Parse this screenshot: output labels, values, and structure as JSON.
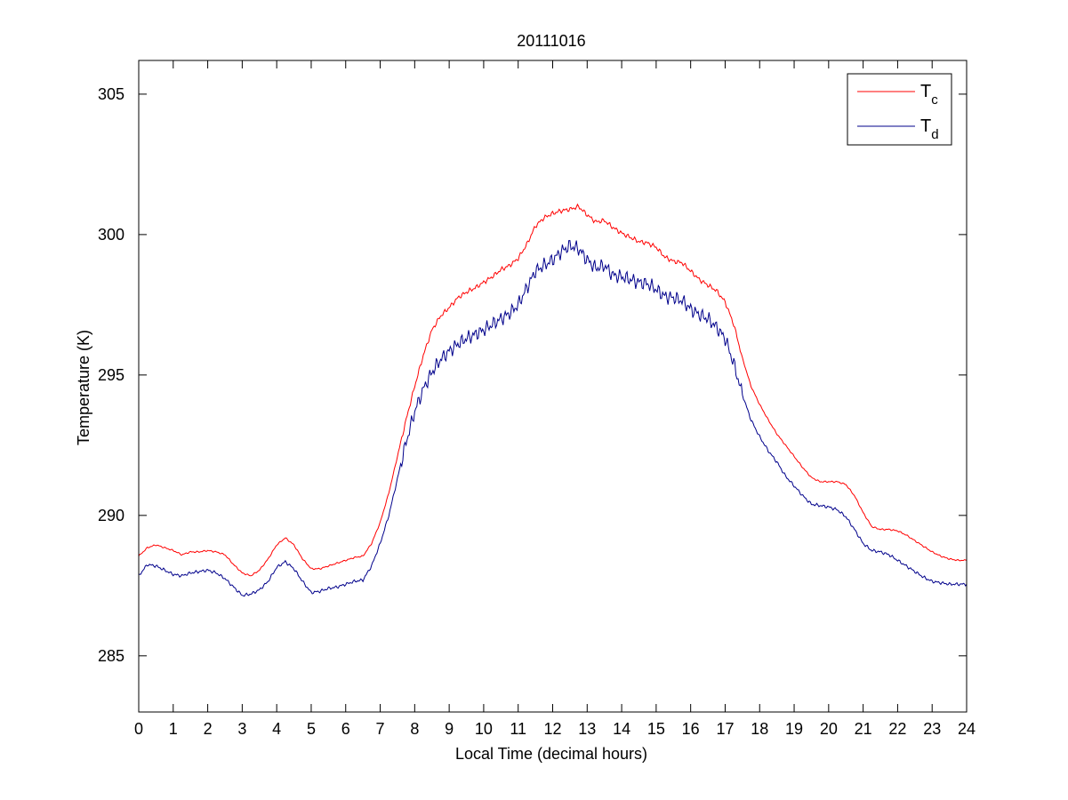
{
  "chart_data": {
    "type": "line",
    "title": "20111016",
    "xlabel": "Local Time (decimal hours)",
    "ylabel": "Temperature (K)",
    "xlim": [
      0,
      24
    ],
    "ylim": [
      283,
      306.2
    ],
    "xticks": [
      0,
      1,
      2,
      3,
      4,
      5,
      6,
      7,
      8,
      9,
      10,
      11,
      12,
      13,
      14,
      15,
      16,
      17,
      18,
      19,
      20,
      21,
      22,
      23,
      24
    ],
    "yticks": [
      285,
      290,
      295,
      300,
      305
    ],
    "grid": false,
    "legend_position": "top-right",
    "series": [
      {
        "name": "T",
        "subscript": "c",
        "color": "#ff0000",
        "points": [
          [
            0,
            288.55
          ],
          [
            0.25,
            288.85
          ],
          [
            0.5,
            288.95
          ],
          [
            0.75,
            288.85
          ],
          [
            1,
            288.75
          ],
          [
            1.25,
            288.6
          ],
          [
            1.5,
            288.7
          ],
          [
            1.75,
            288.7
          ],
          [
            2,
            288.75
          ],
          [
            2.25,
            288.7
          ],
          [
            2.5,
            288.6
          ],
          [
            2.75,
            288.25
          ],
          [
            3,
            287.95
          ],
          [
            3.25,
            287.85
          ],
          [
            3.5,
            288.05
          ],
          [
            3.75,
            288.45
          ],
          [
            4,
            288.95
          ],
          [
            4.25,
            289.2
          ],
          [
            4.5,
            288.95
          ],
          [
            4.75,
            288.45
          ],
          [
            5,
            288.1
          ],
          [
            5.25,
            288.1
          ],
          [
            5.5,
            288.2
          ],
          [
            5.75,
            288.3
          ],
          [
            6,
            288.4
          ],
          [
            6.25,
            288.5
          ],
          [
            6.5,
            288.55
          ],
          [
            6.75,
            289.0
          ],
          [
            7,
            289.75
          ],
          [
            7.25,
            290.8
          ],
          [
            7.5,
            292.1
          ],
          [
            7.75,
            293.4
          ],
          [
            8,
            294.6
          ],
          [
            8.25,
            295.7
          ],
          [
            8.5,
            296.6
          ],
          [
            8.75,
            297.1
          ],
          [
            9,
            297.4
          ],
          [
            9.25,
            297.75
          ],
          [
            9.5,
            297.95
          ],
          [
            9.75,
            298.1
          ],
          [
            10,
            298.3
          ],
          [
            10.25,
            298.5
          ],
          [
            10.5,
            298.75
          ],
          [
            10.75,
            298.9
          ],
          [
            11,
            299.15
          ],
          [
            11.25,
            299.65
          ],
          [
            11.5,
            300.3
          ],
          [
            11.75,
            300.6
          ],
          [
            12,
            300.75
          ],
          [
            12.25,
            300.85
          ],
          [
            12.5,
            300.9
          ],
          [
            12.75,
            301.0
          ],
          [
            13,
            300.7
          ],
          [
            13.25,
            300.45
          ],
          [
            13.5,
            300.5
          ],
          [
            13.75,
            300.25
          ],
          [
            14,
            300.05
          ],
          [
            14.25,
            299.9
          ],
          [
            14.5,
            299.75
          ],
          [
            14.75,
            299.7
          ],
          [
            15,
            299.55
          ],
          [
            15.25,
            299.2
          ],
          [
            15.5,
            299.05
          ],
          [
            15.75,
            299.0
          ],
          [
            16,
            298.7
          ],
          [
            16.25,
            298.4
          ],
          [
            16.5,
            298.2
          ],
          [
            16.75,
            298.0
          ],
          [
            17,
            297.6
          ],
          [
            17.25,
            296.8
          ],
          [
            17.5,
            295.6
          ],
          [
            17.75,
            294.6
          ],
          [
            18,
            293.95
          ],
          [
            18.25,
            293.4
          ],
          [
            18.5,
            292.9
          ],
          [
            18.75,
            292.5
          ],
          [
            19,
            292.1
          ],
          [
            19.25,
            291.7
          ],
          [
            19.5,
            291.35
          ],
          [
            19.75,
            291.2
          ],
          [
            20,
            291.2
          ],
          [
            20.25,
            291.2
          ],
          [
            20.5,
            291.1
          ],
          [
            20.75,
            290.7
          ],
          [
            21,
            290.1
          ],
          [
            21.25,
            289.6
          ],
          [
            21.5,
            289.5
          ],
          [
            21.75,
            289.5
          ],
          [
            22,
            289.45
          ],
          [
            22.25,
            289.3
          ],
          [
            22.5,
            289.1
          ],
          [
            22.75,
            288.9
          ],
          [
            23,
            288.7
          ],
          [
            23.25,
            288.55
          ],
          [
            23.5,
            288.45
          ],
          [
            23.75,
            288.4
          ],
          [
            24,
            288.4
          ]
        ]
      },
      {
        "name": "T",
        "subscript": "d",
        "color": "#00008b",
        "points": [
          [
            0,
            287.85
          ],
          [
            0.25,
            288.25
          ],
          [
            0.5,
            288.2
          ],
          [
            0.75,
            288.05
          ],
          [
            1,
            287.9
          ],
          [
            1.25,
            287.85
          ],
          [
            1.5,
            287.95
          ],
          [
            1.75,
            288.0
          ],
          [
            2,
            288.05
          ],
          [
            2.25,
            287.95
          ],
          [
            2.5,
            287.75
          ],
          [
            2.75,
            287.45
          ],
          [
            3,
            287.15
          ],
          [
            3.25,
            287.2
          ],
          [
            3.5,
            287.35
          ],
          [
            3.75,
            287.65
          ],
          [
            4,
            288.15
          ],
          [
            4.25,
            288.35
          ],
          [
            4.5,
            288.1
          ],
          [
            4.75,
            287.65
          ],
          [
            5,
            287.25
          ],
          [
            5.25,
            287.3
          ],
          [
            5.5,
            287.4
          ],
          [
            5.75,
            287.45
          ],
          [
            6,
            287.55
          ],
          [
            6.25,
            287.65
          ],
          [
            6.5,
            287.7
          ],
          [
            6.75,
            288.2
          ],
          [
            7,
            289.0
          ],
          [
            7.25,
            290.0
          ],
          [
            7.5,
            291.3
          ],
          [
            7.75,
            292.6
          ],
          [
            8,
            293.7
          ],
          [
            8.25,
            294.5
          ],
          [
            8.5,
            295.1
          ],
          [
            8.75,
            295.55
          ],
          [
            9,
            295.85
          ],
          [
            9.25,
            296.1
          ],
          [
            9.5,
            296.3
          ],
          [
            9.75,
            296.45
          ],
          [
            10,
            296.6
          ],
          [
            10.25,
            296.8
          ],
          [
            10.5,
            297.0
          ],
          [
            10.75,
            297.2
          ],
          [
            11,
            297.5
          ],
          [
            11.25,
            298.1
          ],
          [
            11.5,
            298.7
          ],
          [
            11.75,
            298.9
          ],
          [
            12,
            299.1
          ],
          [
            12.25,
            299.4
          ],
          [
            12.5,
            299.6
          ],
          [
            12.75,
            299.5
          ],
          [
            13,
            299.1
          ],
          [
            13.25,
            298.8
          ],
          [
            13.5,
            298.9
          ],
          [
            13.75,
            298.55
          ],
          [
            14,
            298.5
          ],
          [
            14.25,
            298.4
          ],
          [
            14.5,
            298.3
          ],
          [
            14.75,
            298.25
          ],
          [
            15,
            298.05
          ],
          [
            15.25,
            297.8
          ],
          [
            15.5,
            297.75
          ],
          [
            15.75,
            297.65
          ],
          [
            16,
            297.35
          ],
          [
            16.25,
            297.15
          ],
          [
            16.5,
            297.0
          ],
          [
            16.75,
            296.7
          ],
          [
            17,
            296.3
          ],
          [
            17.25,
            295.4
          ],
          [
            17.5,
            294.3
          ],
          [
            17.75,
            293.4
          ],
          [
            18,
            292.8
          ],
          [
            18.25,
            292.3
          ],
          [
            18.5,
            291.9
          ],
          [
            18.75,
            291.4
          ],
          [
            19,
            291.05
          ],
          [
            19.25,
            290.7
          ],
          [
            19.5,
            290.4
          ],
          [
            19.75,
            290.35
          ],
          [
            20,
            290.3
          ],
          [
            20.25,
            290.2
          ],
          [
            20.5,
            289.95
          ],
          [
            20.75,
            289.5
          ],
          [
            21,
            289.0
          ],
          [
            21.25,
            288.75
          ],
          [
            21.5,
            288.7
          ],
          [
            21.75,
            288.6
          ],
          [
            22,
            288.4
          ],
          [
            22.25,
            288.2
          ],
          [
            22.5,
            288.0
          ],
          [
            22.75,
            287.8
          ],
          [
            23,
            287.65
          ],
          [
            23.25,
            287.6
          ],
          [
            23.5,
            287.55
          ],
          [
            23.75,
            287.55
          ],
          [
            24,
            287.55
          ]
        ]
      }
    ]
  }
}
